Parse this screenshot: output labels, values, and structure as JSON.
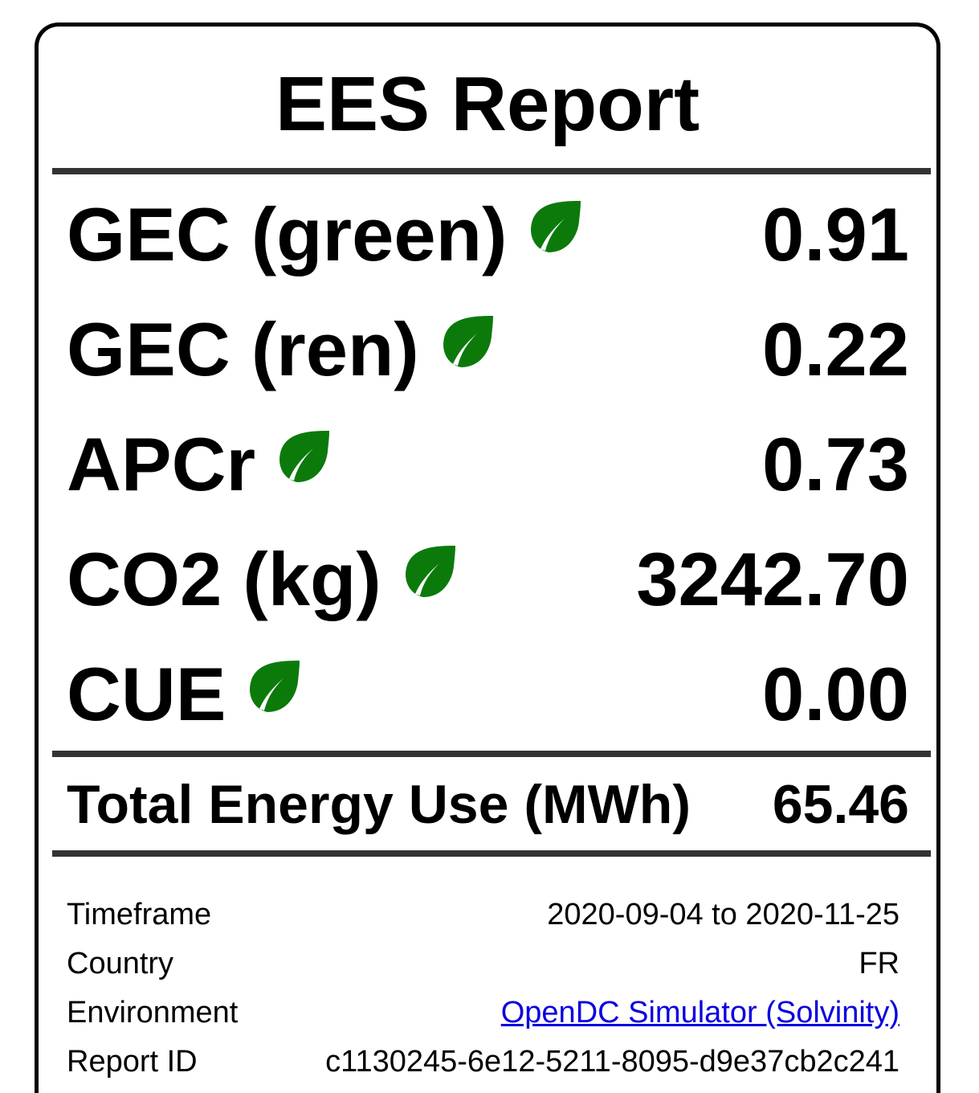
{
  "report": {
    "title": "EES Report",
    "metrics": [
      {
        "label": "GEC (green)",
        "value": "0.91",
        "icon": "leaf-icon"
      },
      {
        "label": "GEC (ren)",
        "value": "0.22",
        "icon": "leaf-icon"
      },
      {
        "label": "APCr",
        "value": "0.73",
        "icon": "leaf-icon"
      },
      {
        "label": "CO2 (kg)",
        "value": "3242.70",
        "icon": "leaf-icon"
      },
      {
        "label": "CUE",
        "value": "0.00",
        "icon": "leaf-icon"
      }
    ],
    "total": {
      "label": "Total Energy Use (MWh)",
      "value": "65.46"
    },
    "meta": {
      "timeframe": {
        "label": "Timeframe",
        "value": "2020-09-04 to 2020-11-25"
      },
      "country": {
        "label": "Country",
        "value": "FR"
      },
      "environment": {
        "label": "Environment",
        "value": "OpenDC Simulator (Solvinity)"
      },
      "report_id": {
        "label": "Report ID",
        "value": "c1130245-6e12-5211-8095-d9e37cb2c241"
      }
    }
  },
  "colors": {
    "leaf": "#0b7a0b",
    "link": "#0b00e0",
    "rule": "#333333"
  }
}
